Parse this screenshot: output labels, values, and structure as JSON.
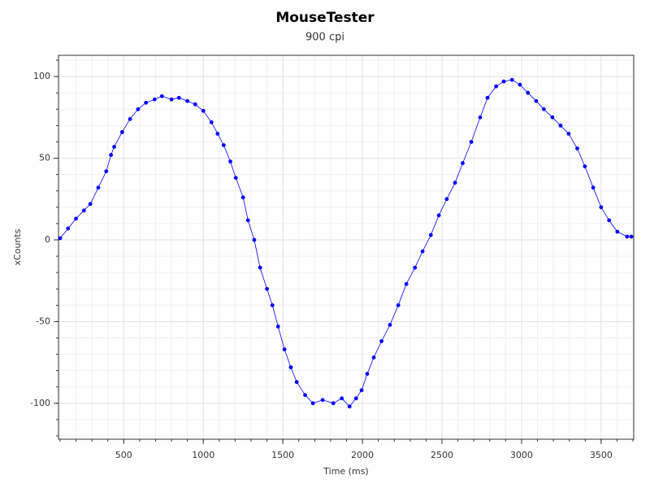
{
  "chart_data": {
    "type": "scatter",
    "title": "MouseTester",
    "subtitle": "900 cpi",
    "x_label": "Time (ms)",
    "y_label": "xCounts",
    "x": [
      100,
      150,
      200,
      250,
      290,
      340,
      390,
      420,
      440,
      490,
      540,
      590,
      640,
      694,
      740,
      800,
      847,
      900,
      949,
      1000,
      1051,
      1090,
      1128,
      1170,
      1204,
      1250,
      1281,
      1320,
      1357,
      1400,
      1434,
      1470,
      1510,
      1550,
      1587,
      1640,
      1689,
      1750,
      1817,
      1870,
      1919,
      1960,
      1995,
      2030,
      2071,
      2120,
      2173,
      2225,
      2276,
      2330,
      2378,
      2430,
      2480,
      2530,
      2582,
      2630,
      2684,
      2740,
      2786,
      2840,
      2888,
      2940,
      2990,
      3040,
      3092,
      3140,
      3194,
      3245,
      3296,
      3350,
      3398,
      3450,
      3500,
      3550,
      3602,
      3663,
      3690
    ],
    "values": [
      1,
      7,
      13,
      18,
      22,
      32,
      42,
      52,
      57,
      66,
      74,
      80,
      84,
      86,
      88,
      86,
      87,
      85,
      83,
      79,
      72,
      65,
      58,
      48,
      38,
      26,
      12,
      0,
      -17,
      -30,
      -40,
      -53,
      -67,
      -78,
      -87,
      -95,
      -100,
      -98,
      -100,
      -97,
      -102,
      -97,
      -92,
      -82,
      -72,
      -62,
      -52,
      -40,
      -27,
      -17,
      -7,
      3,
      15,
      25,
      35,
      47,
      60,
      75,
      87,
      94,
      97,
      98,
      95,
      90,
      85,
      80,
      75,
      70,
      65,
      56,
      45,
      32,
      20,
      12,
      5,
      2,
      2
    ],
    "color": "#0000ff",
    "line": true,
    "grid": true,
    "xlim": [
      90,
      3705
    ],
    "xticks": [
      500,
      1000,
      1500,
      2000,
      2500,
      3000,
      3500
    ],
    "ylim": [
      -122,
      113
    ],
    "yticks": [
      -100,
      -50,
      0,
      50,
      100
    ]
  }
}
